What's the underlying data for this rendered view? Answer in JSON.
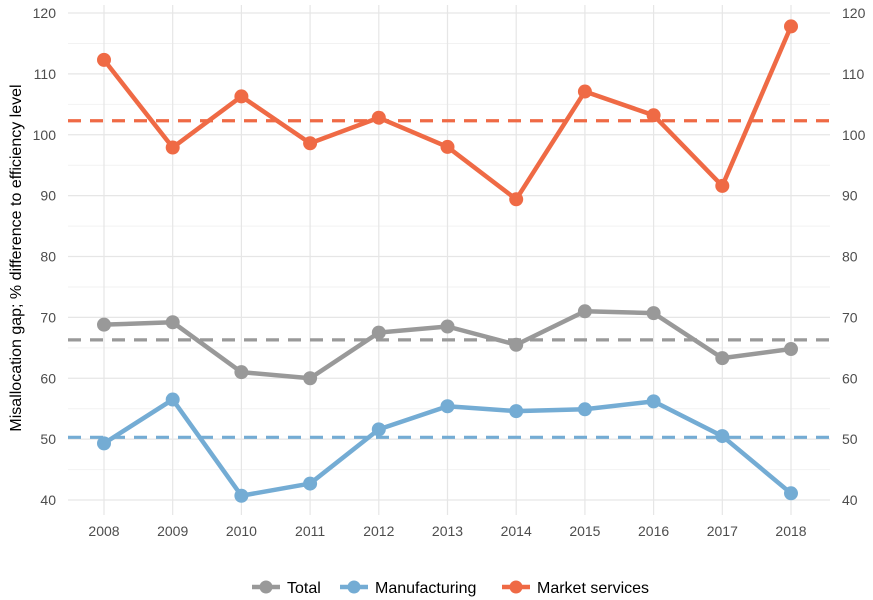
{
  "chart_data": {
    "type": "line",
    "x": [
      2008,
      2009,
      2010,
      2011,
      2012,
      2013,
      2014,
      2015,
      2016,
      2017,
      2018
    ],
    "x_tick_labels": [
      "2008",
      "2009",
      "2010",
      "2011",
      "2012",
      "2013",
      "2014",
      "2015",
      "2016",
      "2017",
      "2018"
    ],
    "y_ticks": [
      40,
      50,
      60,
      70,
      80,
      90,
      100,
      110,
      120
    ],
    "y_tick_labels": [
      "40",
      "50",
      "60",
      "70",
      "80",
      "90",
      "100",
      "110",
      "120"
    ],
    "ylim": [
      37,
      121
    ],
    "ylabel": "Misallocation gap; % difference to efficiency level",
    "xlabel": "",
    "title": "",
    "grid": true,
    "secondary_y_axis": "right (duplicate of left)",
    "legend_position": "bottom",
    "series": [
      {
        "name": "Total",
        "color": "#999999",
        "values": [
          68.8,
          69.2,
          61.0,
          60.0,
          67.5,
          68.5,
          65.5,
          71.0,
          70.7,
          63.3,
          64.8
        ],
        "average": 66.3
      },
      {
        "name": "Manufacturing",
        "color": "#74acd4",
        "values": [
          49.3,
          56.5,
          40.7,
          42.7,
          51.6,
          55.4,
          54.6,
          54.9,
          56.2,
          50.5,
          41.1
        ],
        "average": 50.3
      },
      {
        "name": "Market services",
        "color": "#ef6a45",
        "values": [
          112.3,
          97.9,
          106.3,
          98.6,
          102.8,
          98.0,
          89.4,
          107.1,
          103.2,
          91.6,
          117.8
        ],
        "average": 102.3
      }
    ]
  }
}
